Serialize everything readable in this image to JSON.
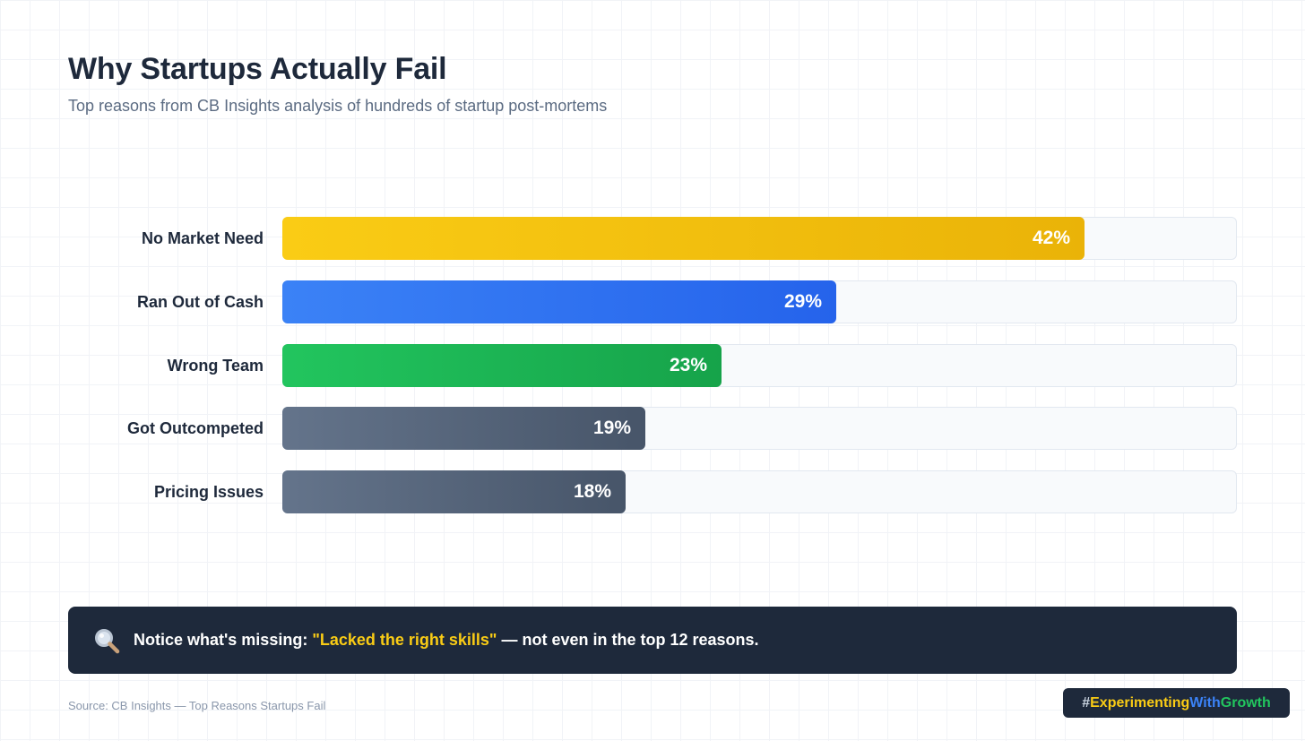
{
  "header": {
    "title": "Why Startups Actually Fail",
    "subtitle": "Top reasons from CB Insights analysis of hundreds of startup post-mortems"
  },
  "chart_data": {
    "type": "bar",
    "orientation": "horizontal",
    "title": "Why Startups Actually Fail",
    "subtitle": "Top reasons from CB Insights analysis of hundreds of startup post-mortems",
    "categories": [
      "No Market Need",
      "Ran Out of Cash",
      "Wrong Team",
      "Got Outcompeted",
      "Pricing Issues"
    ],
    "values": [
      42,
      29,
      23,
      19,
      18
    ],
    "value_labels": [
      "42%",
      "29%",
      "23%",
      "19%",
      "18%"
    ],
    "xlim": [
      0,
      50
    ],
    "unit": "%",
    "grid": false,
    "legend": "none",
    "colors": [
      [
        "#facc15",
        "#eab308"
      ],
      [
        "#3b82f6",
        "#2563eb"
      ],
      [
        "#22c55e",
        "#16a34a"
      ],
      [
        "#64748b",
        "#475569"
      ],
      [
        "#64748b",
        "#475569"
      ]
    ]
  },
  "callout": {
    "icon": "magnifying-glass-icon",
    "prefix": "Notice what's missing: ",
    "highlight": "\"Lacked the right skills\"",
    "suffix": " — not even in the top 12 reasons.",
    "highlight_color": "#facc15"
  },
  "footer": {
    "source": "Source: CB Insights — Top Reasons Startups Fail",
    "hashtag": {
      "hash": "#",
      "part1": "Experimenting",
      "part2": "With",
      "part3": "Growth"
    }
  }
}
